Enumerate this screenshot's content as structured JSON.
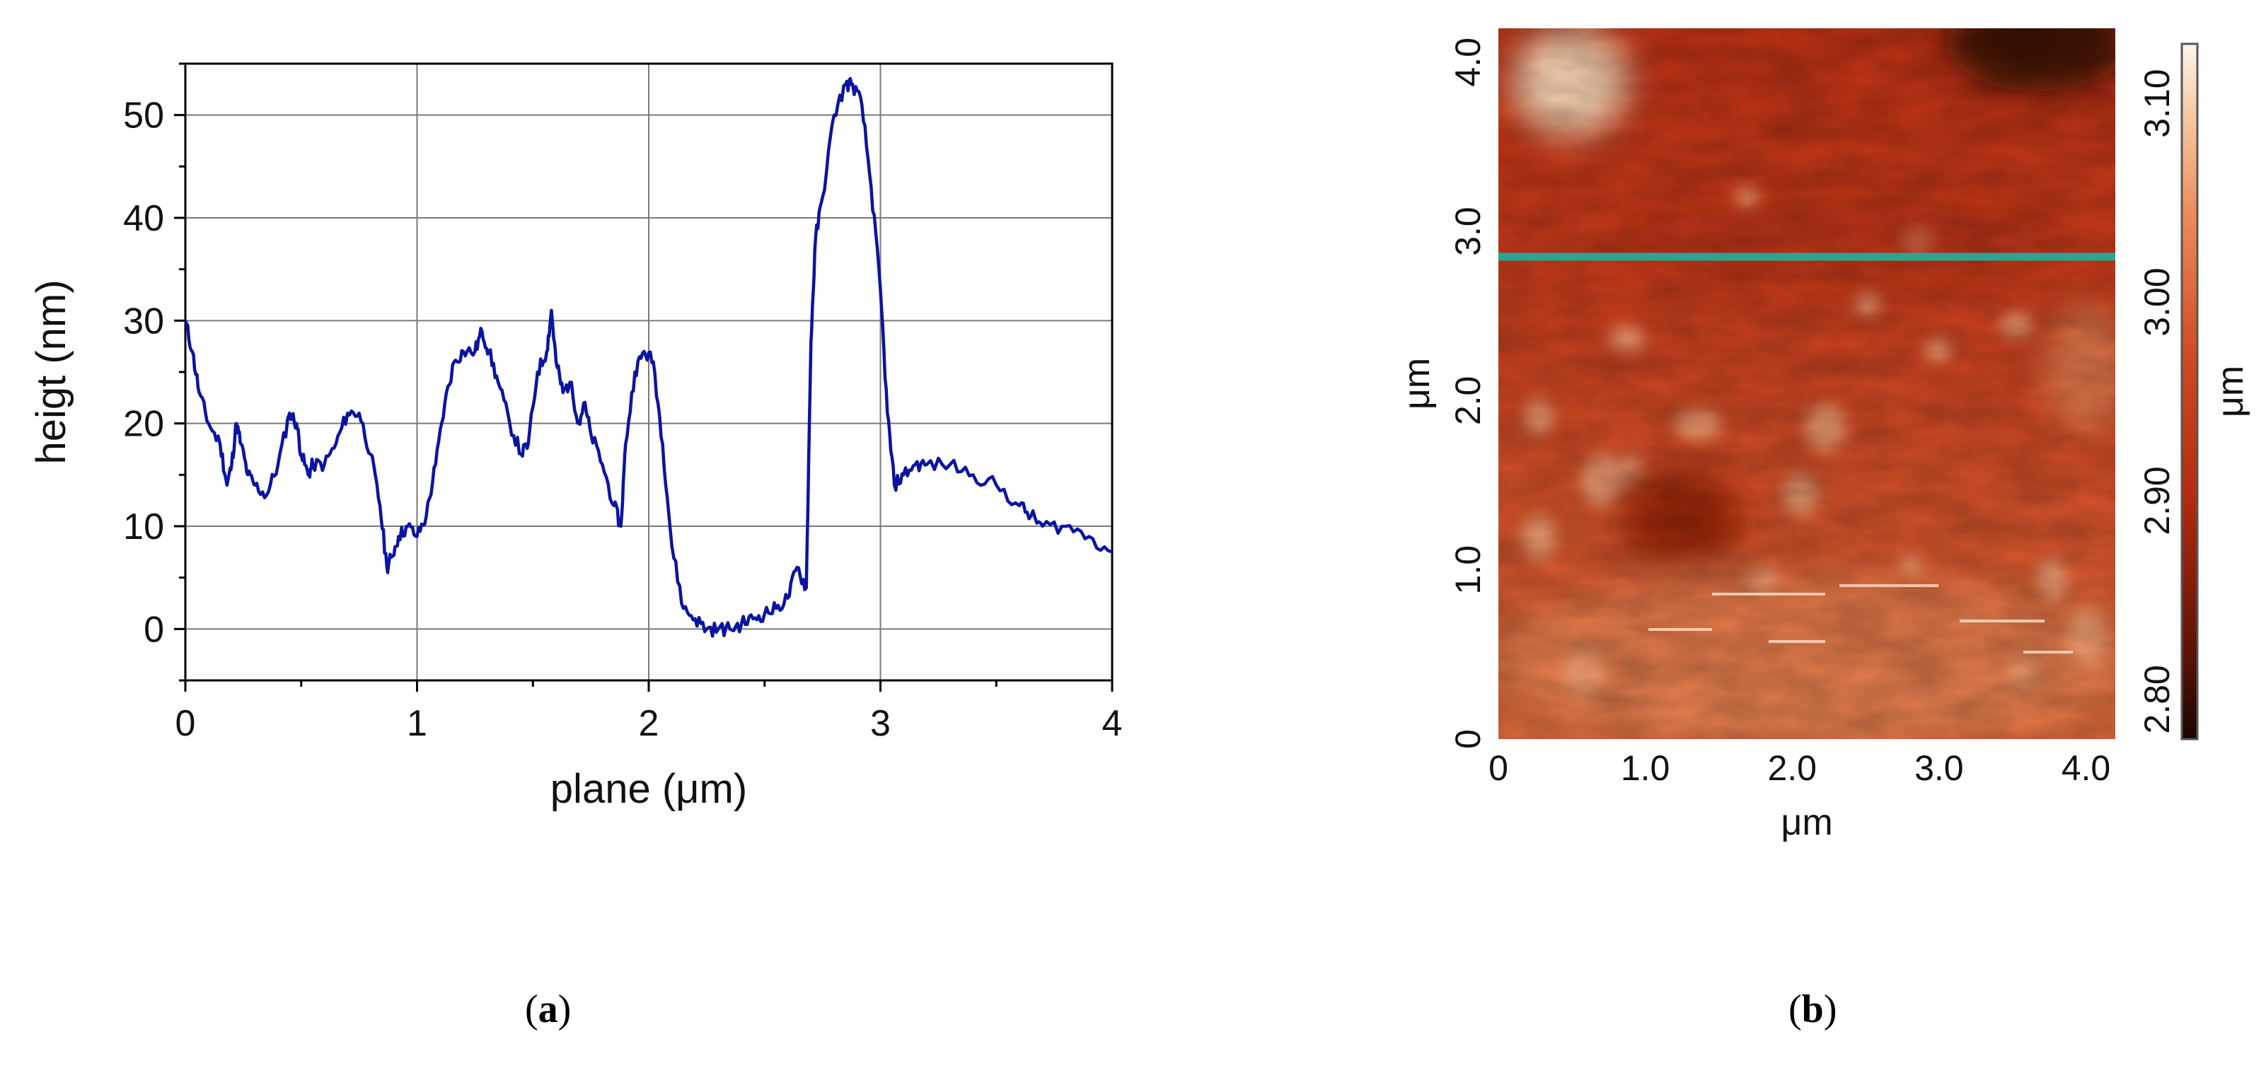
{
  "labels": {
    "a_open": "(",
    "a_letter": "a",
    "a_close": ")",
    "b_open": "(",
    "b_letter": "b",
    "b_close": ")"
  },
  "chart_data": [
    {
      "type": "line",
      "xlabel": "plane (μm)",
      "ylabel": "heigt (nm)",
      "xlim": [
        0,
        4
      ],
      "ylim": [
        -5,
        55
      ],
      "xticks": [
        0,
        1,
        2,
        3,
        4
      ],
      "yticks": [
        0,
        10,
        20,
        30,
        40,
        50
      ],
      "grid": true,
      "line_color": "#0a14a0",
      "series": [
        {
          "x": [
            0,
            0.03,
            0.06,
            0.1,
            0.15,
            0.18,
            0.2,
            0.22,
            0.24,
            0.27,
            0.3,
            0.35,
            0.4,
            0.45,
            0.48,
            0.5,
            0.53,
            0.55,
            0.6,
            0.65,
            0.7,
            0.75,
            0.8,
            0.84,
            0.87,
            0.89,
            0.92,
            0.96,
            1.0,
            1.04,
            1.08,
            1.12,
            1.16,
            1.2,
            1.25,
            1.28,
            1.31,
            1.35,
            1.4,
            1.45,
            1.48,
            1.52,
            1.56,
            1.58,
            1.6,
            1.63,
            1.66,
            1.7,
            1.72,
            1.75,
            1.8,
            1.85,
            1.88,
            1.9,
            1.94,
            1.98,
            2.02,
            2.06,
            2.1,
            2.15,
            2.2,
            2.25,
            2.3,
            2.35,
            2.4,
            2.45,
            2.5,
            2.55,
            2.6,
            2.64,
            2.68,
            2.7,
            2.72,
            2.75,
            2.8,
            2.85,
            2.88,
            2.92,
            2.96,
            3.0,
            3.03,
            3.06,
            3.1,
            3.15,
            3.2,
            3.3,
            3.4,
            3.5,
            3.6,
            3.65,
            3.7,
            3.8,
            3.9,
            4.0
          ],
          "y": [
            30,
            27,
            23,
            20,
            18,
            14,
            16,
            20,
            18,
            15,
            14,
            13,
            16,
            21,
            20,
            17,
            15,
            16,
            16,
            18,
            21,
            21,
            17,
            12,
            6,
            7,
            9,
            10,
            9,
            11,
            16,
            22,
            26,
            27,
            27,
            29,
            27,
            24,
            20,
            17,
            18,
            25,
            27,
            31,
            26,
            23,
            24,
            20,
            22,
            19,
            16,
            12,
            10,
            18,
            25,
            27,
            26,
            18,
            8,
            2,
            1,
            0,
            0,
            0,
            0.5,
            1,
            1.5,
            2,
            3,
            6,
            4,
            28,
            38,
            42,
            50,
            53,
            53,
            51,
            43,
            33,
            21,
            14,
            15,
            16,
            16,
            16,
            15,
            14,
            12,
            11,
            10,
            10,
            9,
            7.5
          ]
        }
      ]
    },
    {
      "type": "heatmap",
      "xlabel": "μm",
      "ylabel": "μm",
      "xticks": [
        "0",
        "1.0",
        "2.0",
        "3.0",
        "4.0"
      ],
      "yticks": [
        "0",
        "1.0",
        "2.0",
        "3.0",
        "4.0"
      ],
      "xlim": [
        0,
        4.2
      ],
      "ylim": [
        0,
        4.2
      ],
      "colorbar_label": "μm",
      "colorbar_ticks": [
        "2.80",
        "2.90",
        "3.00",
        "3.10"
      ],
      "colorbar_range": [
        2.78,
        3.13
      ],
      "scan_line_y": 2.85,
      "scan_line_color": "#2aa68f",
      "colors": {
        "base": "#c83c1c",
        "dark": "#2a0a04",
        "light": "#f7d2b0",
        "highlight": "#fff2e0"
      }
    }
  ]
}
